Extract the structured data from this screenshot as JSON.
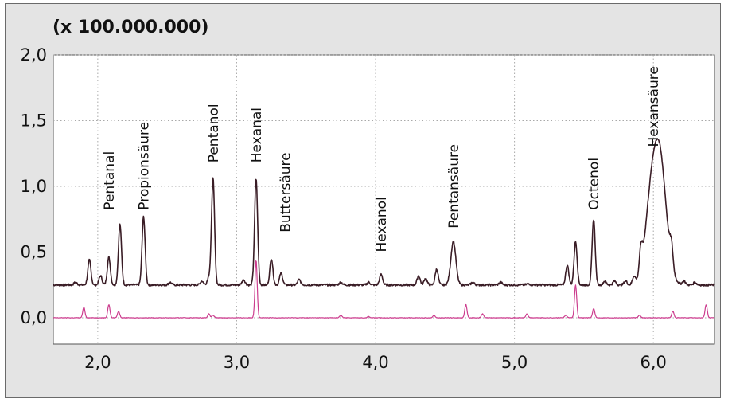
{
  "chart_data": {
    "type": "line",
    "title": "",
    "xlabel": "",
    "ylabel": "",
    "y_scale_label": "(x 100.000.000)",
    "xlim": [
      1.68,
      6.44
    ],
    "ylim": [
      -0.2,
      2.0
    ],
    "x_ticks": [
      2.0,
      3.0,
      4.0,
      5.0,
      6.0
    ],
    "x_tick_labels": [
      "2,0",
      "3,0",
      "4,0",
      "5,0",
      "6,0"
    ],
    "y_ticks": [
      0.0,
      0.5,
      1.0,
      1.5,
      2.0
    ],
    "y_tick_labels": [
      "0,0",
      "0,5",
      "1,0",
      "1,5",
      "2,0"
    ],
    "grid": true,
    "colors": {
      "plot_bg": "#ffffff",
      "frame_bg": "#e4e4e4",
      "grid": "#a9a9a9"
    },
    "series": [
      {
        "color": "#3a1d26",
        "baseline": 0.25,
        "noise": 0.008,
        "peaks": [
          [
            1.84,
            0.02
          ],
          [
            1.94,
            0.19
          ],
          [
            2.02,
            0.07
          ],
          [
            2.08,
            0.21
          ],
          [
            2.16,
            0.46
          ],
          [
            2.33,
            0.52
          ],
          [
            2.52,
            0.02
          ],
          [
            2.75,
            0.03
          ],
          [
            2.8,
            0.06
          ],
          [
            2.83,
            0.81
          ],
          [
            3.05,
            0.04
          ],
          [
            3.14,
            0.81
          ],
          [
            3.25,
            0.2
          ],
          [
            3.32,
            0.09
          ],
          [
            3.45,
            0.04
          ],
          [
            3.75,
            0.02
          ],
          [
            3.95,
            0.02
          ],
          [
            4.04,
            0.08
          ],
          [
            4.31,
            0.07
          ],
          [
            4.36,
            0.05
          ],
          [
            4.44,
            0.12
          ],
          [
            4.56,
            0.33
          ],
          [
            4.7,
            0.02
          ],
          [
            4.9,
            0.02
          ],
          [
            5.1,
            0.01
          ],
          [
            5.38,
            0.15
          ],
          [
            5.44,
            0.33
          ],
          [
            5.57,
            0.5
          ],
          [
            5.65,
            0.03
          ],
          [
            5.72,
            0.03
          ],
          [
            5.8,
            0.03
          ],
          [
            5.86,
            0.06
          ],
          [
            5.91,
            0.17
          ],
          [
            5.97,
            0.35
          ],
          [
            6.04,
            1.02
          ],
          [
            6.13,
            0.15
          ],
          [
            6.22,
            0.03
          ],
          [
            6.3,
            0.02
          ]
        ],
        "peak_widths": {
          "6.04": 0.05,
          "5.97": 0.04,
          "4.56": 0.018
        },
        "default_width": 0.011
      },
      {
        "color": "#cc3d8e",
        "baseline": 0.0,
        "noise": 0.002,
        "peaks": [
          [
            1.9,
            0.08
          ],
          [
            2.08,
            0.1
          ],
          [
            2.15,
            0.05
          ],
          [
            2.8,
            0.03
          ],
          [
            2.83,
            0.02
          ],
          [
            3.14,
            0.44
          ],
          [
            3.75,
            0.02
          ],
          [
            3.95,
            0.01
          ],
          [
            4.42,
            0.02
          ],
          [
            4.65,
            0.1
          ],
          [
            4.77,
            0.03
          ],
          [
            5.09,
            0.03
          ],
          [
            5.37,
            0.02
          ],
          [
            5.44,
            0.25
          ],
          [
            5.57,
            0.07
          ],
          [
            5.9,
            0.02
          ],
          [
            6.14,
            0.05
          ],
          [
            6.38,
            0.1
          ]
        ],
        "peak_widths": {},
        "default_width": 0.008
      }
    ],
    "annotations": [
      {
        "text": "Pentanal",
        "x": 2.08,
        "y": 0.82
      },
      {
        "text": "Propionsäure",
        "x": 2.33,
        "y": 0.82
      },
      {
        "text": "Pentanol",
        "x": 2.83,
        "y": 1.18
      },
      {
        "text": "Hexanal",
        "x": 3.14,
        "y": 1.18
      },
      {
        "text": "Buttersäure",
        "x": 3.35,
        "y": 0.65
      },
      {
        "text": "Hexanol",
        "x": 4.04,
        "y": 0.5
      },
      {
        "text": "Pentansäure",
        "x": 4.56,
        "y": 0.68
      },
      {
        "text": "Octenol",
        "x": 5.57,
        "y": 0.82
      },
      {
        "text": "Hexansäure",
        "x": 6.0,
        "y": 1.3
      }
    ]
  }
}
